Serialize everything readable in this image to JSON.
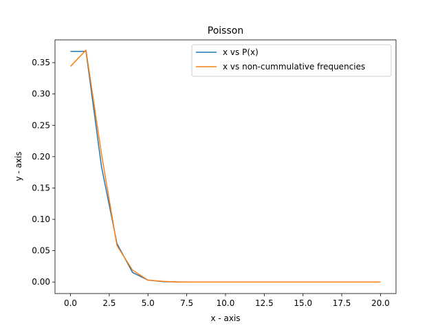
{
  "chart_data": {
    "type": "line",
    "title": "Poisson",
    "xlabel": "x - axis",
    "ylabel": "y - axis",
    "xlim": [
      -1.0,
      21.0
    ],
    "ylim": [
      -0.0184,
      0.3863
    ],
    "xticks": [
      0.0,
      2.5,
      5.0,
      7.5,
      10.0,
      12.5,
      15.0,
      17.5,
      20.0
    ],
    "xtick_labels": [
      "0.0",
      "2.5",
      "5.0",
      "7.5",
      "10.0",
      "12.5",
      "15.0",
      "17.5",
      "20.0"
    ],
    "yticks": [
      0.0,
      0.05,
      0.1,
      0.15,
      0.2,
      0.25,
      0.3,
      0.35
    ],
    "ytick_labels": [
      "0.00",
      "0.05",
      "0.10",
      "0.15",
      "0.20",
      "0.25",
      "0.30",
      "0.35"
    ],
    "grid": false,
    "legend_position": "top-right",
    "x": [
      0,
      1,
      2,
      3,
      4,
      5,
      6,
      7,
      8,
      9,
      10,
      11,
      12,
      13,
      14,
      15,
      16,
      17,
      18,
      19,
      20
    ],
    "series": [
      {
        "name": "x vs P(x)",
        "color": "#1f77b4",
        "values": [
          0.3679,
          0.3679,
          0.1839,
          0.0613,
          0.0153,
          0.0031,
          0.0005,
          0.0001,
          0,
          0,
          0,
          0,
          0,
          0,
          0,
          0,
          0,
          0,
          0,
          0,
          0
        ]
      },
      {
        "name": "x vs non-cummulative frequencies",
        "color": "#ff7f0e",
        "values": [
          0.344,
          0.37,
          0.204,
          0.058,
          0.019,
          0.003,
          0.001,
          0.0,
          0,
          0,
          0,
          0,
          0,
          0,
          0,
          0,
          0,
          0,
          0,
          0,
          0
        ]
      }
    ]
  }
}
